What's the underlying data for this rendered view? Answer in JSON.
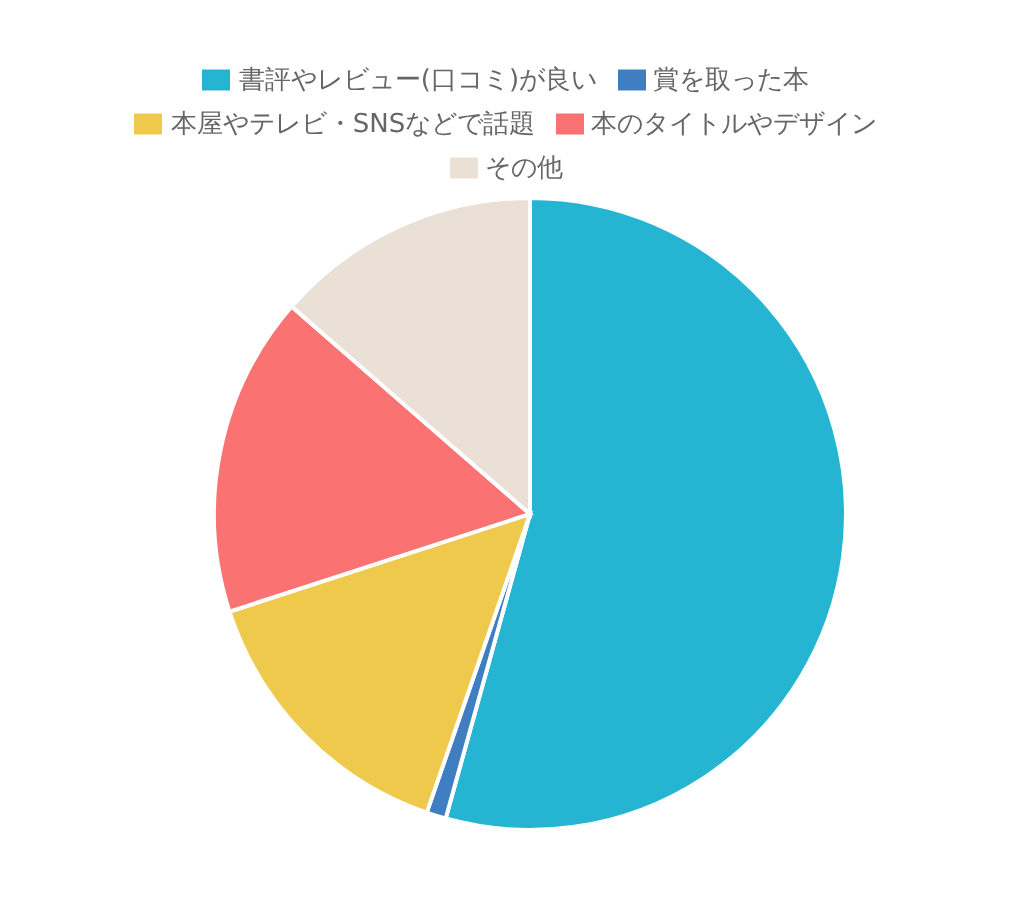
{
  "chart_data": {
    "type": "pie",
    "categories": [
      "書評やレビュー(口コミ)が良い",
      "賞を取った本",
      "本屋やテレビ・SNSなどで話題",
      "本のタイトルやデザイン",
      "その他"
    ],
    "values": [
      54.3,
      1,
      14.7,
      16.4,
      13.6
    ],
    "colors": [
      "#25b5d3",
      "#3f7fc1",
      "#efc94c",
      "#fb7272",
      "#ebe0d5"
    ],
    "legend": "top"
  }
}
